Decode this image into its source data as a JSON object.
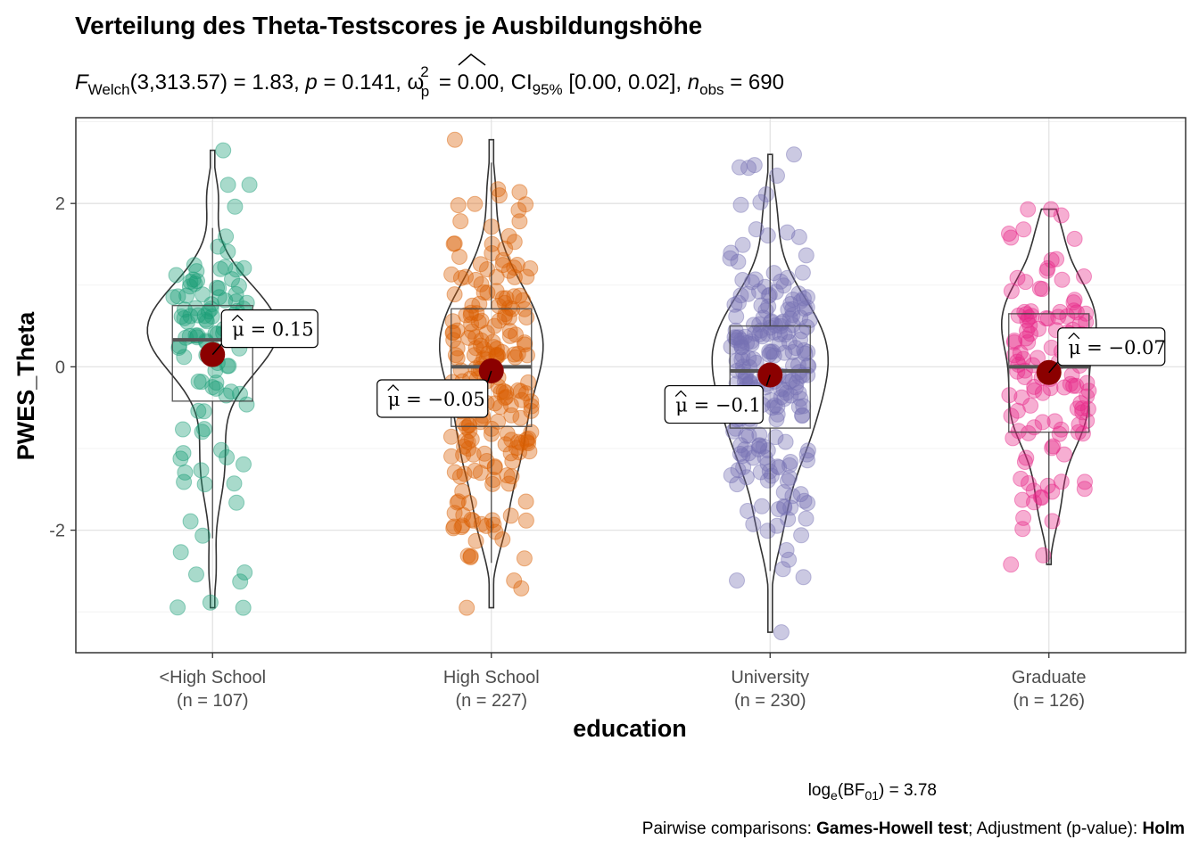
{
  "chart_data": {
    "type": "violin-box-scatter",
    "title": "Verteilung des Theta-Testscores je Ausbildungshöhe",
    "subtitle": {
      "f_symbol": "F",
      "f_sub": "Welch",
      "df_and_stat": "(3,313.57) = 1.83, ",
      "p_symbol": "p",
      "p_value": " = 0.141, ",
      "omega_symbol": "ω",
      "omega_sup": "2",
      "omega_sub": "p",
      "omega_value": " = 0.00, CI",
      "ci_sub": "95%",
      "ci_value": " [0.00, 0.02], ",
      "n_symbol": "n",
      "n_sub": "obs",
      "n_value": " = 690"
    },
    "xlabel": "education",
    "ylabel": "PWES_Theta",
    "ylim": [
      -3.5,
      3.05
    ],
    "yticks": [
      -2,
      0,
      2
    ],
    "ytick_labels": [
      "-2",
      "0",
      "2"
    ],
    "grid": true,
    "categories": [
      {
        "name": "<High School",
        "n_label": "(n = 107)",
        "n": 107,
        "color": "#1b9e77",
        "mean": 0.15,
        "mean_label": "0.15",
        "median": 0.33,
        "q1": -0.42,
        "q3": 0.75,
        "whisker_low": -2.1,
        "whisker_high": 1.7,
        "min": -2.95,
        "max": 2.65
      },
      {
        "name": "High School",
        "n_label": "(n = 227)",
        "n": 227,
        "color": "#d95f02",
        "mean": -0.05,
        "mean_label": "−0.05",
        "median": 0.0,
        "q1": -0.73,
        "q3": 0.71,
        "whisker_low": -2.4,
        "whisker_high": 2.5,
        "min": -2.95,
        "max": 2.78
      },
      {
        "name": "University",
        "n_label": "(n = 230)",
        "n": 230,
        "color": "#7570b3",
        "mean": -0.1,
        "mean_label": "−0.1",
        "median": -0.05,
        "q1": -0.75,
        "q3": 0.5,
        "whisker_low": -2.5,
        "whisker_high": 2.35,
        "min": -3.25,
        "max": 2.6
      },
      {
        "name": "Graduate",
        "n_label": "(n = 126)",
        "n": 126,
        "color": "#e7298a",
        "mean": -0.07,
        "mean_label": "−0.07",
        "median": 0.0,
        "q1": -0.8,
        "q3": 0.65,
        "whisker_low": -2.42,
        "whisker_high": 1.93,
        "min": -2.42,
        "max": 1.93
      }
    ],
    "mean_label_prefix": "μ = ",
    "mean_color": "#8b0000",
    "caption_bf_prefix": "log",
    "caption_bf_sub1": "e",
    "caption_bf_mid": "(BF",
    "caption_bf_sub2": "01",
    "caption_bf_value": ") = 3.78",
    "caption_pairwise_1": "Pairwise comparisons: ",
    "caption_pairwise_bold1": "Games-Howell test",
    "caption_pairwise_2": "; Adjustment (p-value): ",
    "caption_pairwise_bold2": "Holm"
  }
}
